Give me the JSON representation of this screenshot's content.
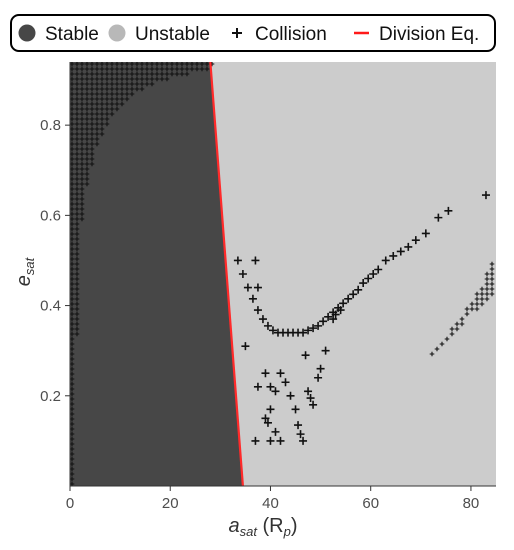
{
  "chart_data": {
    "type": "scatter",
    "xlabel": {
      "main": "a",
      "sub": "sat",
      "rest": " (R",
      "unit_sub": "p",
      "close": ")"
    },
    "ylabel": {
      "main": "e",
      "sub": "sat"
    },
    "xlim": [
      0,
      85
    ],
    "ylim": [
      0,
      0.94
    ],
    "x_ticks": [
      0,
      20,
      40,
      60,
      80
    ],
    "y_ticks": [
      0.2,
      0.4,
      0.6,
      0.8
    ],
    "grid": false,
    "legend_position": "top",
    "legend": [
      {
        "label": "Stable",
        "kind": "dot",
        "color": "#474747"
      },
      {
        "label": "Unstable",
        "kind": "dot",
        "color": "#b8b8b8"
      },
      {
        "label": "Collision",
        "kind": "plus",
        "color": "#111111"
      },
      {
        "label": "Division Eq.",
        "kind": "line",
        "color": "#ff1a1a"
      }
    ],
    "colors": {
      "stable": "#474747",
      "unstable": "#cccccc",
      "collision": "#111111",
      "division": "#ff2a2a"
    },
    "series": [
      {
        "name": "Stable",
        "kind": "region",
        "boundary_note": "stable region spans from a=0 to the division line at each e",
        "points": [
          [
            0,
            0
          ],
          [
            34.5,
            0
          ],
          [
            28,
            0.94
          ],
          [
            0,
            0.94
          ]
        ]
      },
      {
        "name": "Unstable",
        "kind": "region",
        "points": [
          [
            34.5,
            0
          ],
          [
            85,
            0
          ],
          [
            85,
            0.94
          ],
          [
            28,
            0.94
          ]
        ]
      },
      {
        "name": "Division Eq.",
        "kind": "line",
        "points": [
          [
            28,
            0.94
          ],
          [
            34.5,
            0.0
          ]
        ]
      },
      {
        "name": "Collision",
        "kind": "band",
        "label": "low-a collision band (dense)",
        "curve_x": [
          1,
          1.5,
          2.5,
          4,
          6,
          8,
          10,
          12,
          14,
          16,
          18,
          20,
          22,
          24,
          26,
          28
        ],
        "curve_e": [
          0.0,
          0.42,
          0.6,
          0.7,
          0.77,
          0.81,
          0.84,
          0.86,
          0.875,
          0.885,
          0.895,
          0.905,
          0.91,
          0.915,
          0.92,
          0.925
        ],
        "note": "collisions fill region left of / above curve"
      },
      {
        "name": "Collision",
        "kind": "band",
        "label": "high-a collision band",
        "lower_edge": [
          [
            57.5,
            0.0
          ],
          [
            60,
            0.1
          ],
          [
            65,
            0.2
          ],
          [
            70,
            0.27
          ],
          [
            75,
            0.32
          ],
          [
            80,
            0.38
          ],
          [
            85,
            0.43
          ]
        ],
        "upper_edge": [
          [
            59.5,
            0.0
          ],
          [
            62,
            0.1
          ],
          [
            67,
            0.2
          ],
          [
            72,
            0.29
          ],
          [
            77,
            0.36
          ],
          [
            82,
            0.44
          ],
          [
            85,
            0.52
          ]
        ]
      },
      {
        "name": "Collision",
        "kind": "points",
        "label": "resonance arc",
        "x": [
          33.5,
          34.5,
          35.5,
          36.5,
          37.5,
          38.5,
          39.5,
          40.5,
          41.5,
          42.5,
          43.5,
          44.5,
          45.5,
          46.5,
          47.5,
          48.5,
          49.5,
          50.5,
          51.5,
          52.5,
          53.5,
          54.5,
          55.5,
          56.5,
          57.5,
          58.5,
          59.5,
          60.5,
          61.5,
          63,
          64.5,
          66,
          67.5,
          69,
          71,
          73.5,
          75.5,
          83
        ],
        "y": [
          0.5,
          0.47,
          0.44,
          0.415,
          0.39,
          0.37,
          0.355,
          0.345,
          0.34,
          0.34,
          0.34,
          0.34,
          0.34,
          0.34,
          0.345,
          0.35,
          0.355,
          0.365,
          0.375,
          0.385,
          0.395,
          0.405,
          0.415,
          0.425,
          0.435,
          0.45,
          0.46,
          0.47,
          0.48,
          0.5,
          0.51,
          0.52,
          0.53,
          0.545,
          0.56,
          0.595,
          0.61,
          0.645
        ]
      },
      {
        "name": "Collision",
        "kind": "points",
        "label": "scattered crosses",
        "x": [
          37,
          37.5,
          35,
          37.5,
          39,
          40,
          41,
          42,
          43,
          44,
          45,
          45.5,
          46,
          46.5,
          47,
          47.5,
          48,
          48.5,
          50,
          49.5,
          51,
          39,
          40,
          39.5,
          41,
          42,
          37,
          40,
          52.5,
          53,
          54
        ],
        "y": [
          0.5,
          0.44,
          0.31,
          0.22,
          0.25,
          0.22,
          0.21,
          0.25,
          0.23,
          0.2,
          0.17,
          0.135,
          0.115,
          0.1,
          0.29,
          0.21,
          0.195,
          0.18,
          0.26,
          0.24,
          0.3,
          0.15,
          0.17,
          0.14,
          0.12,
          0.1,
          0.1,
          0.1,
          0.37,
          0.38,
          0.39
        ]
      }
    ]
  }
}
